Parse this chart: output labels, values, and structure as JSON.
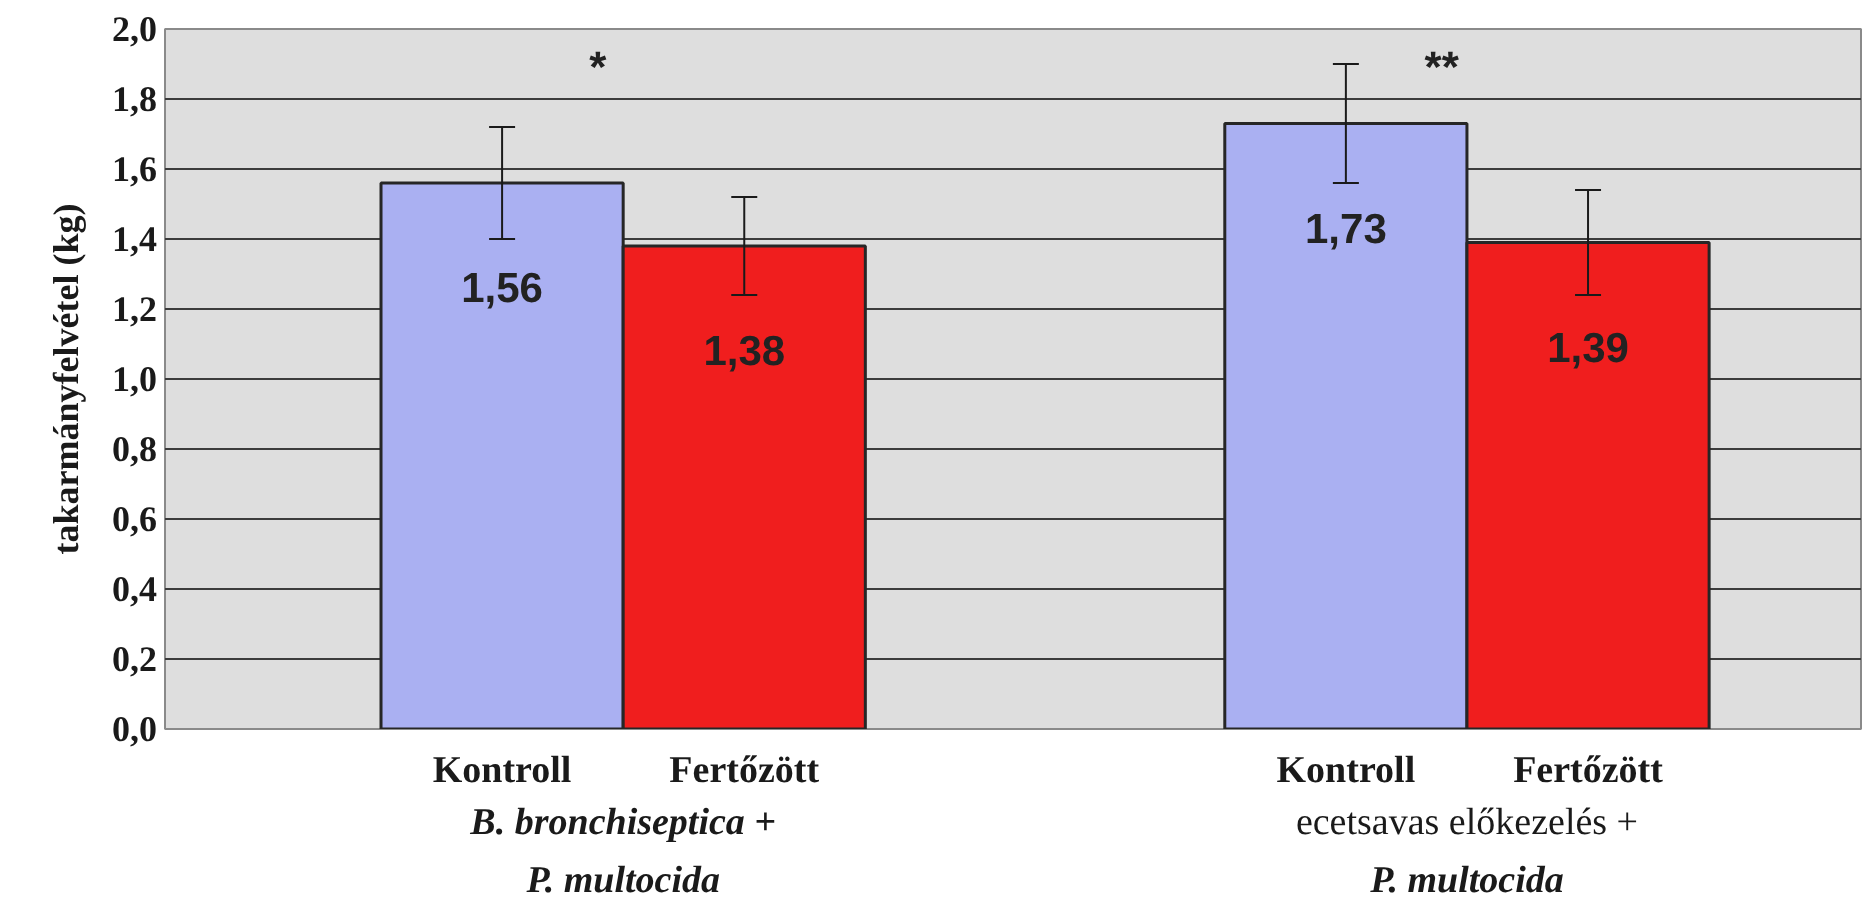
{
  "chart_data": {
    "type": "bar",
    "categories": [
      "B. bronchiseptica +\nP. multocida",
      "ecetsavas előkezelés +\nP. multocida"
    ],
    "series": [
      {
        "name": "Kontroll",
        "color": "#aab0f2",
        "values": [
          1.56,
          1.73
        ],
        "errors": [
          0.16,
          0.17
        ],
        "value_labels": [
          "1,56",
          "1,73"
        ]
      },
      {
        "name": "Fertőzött",
        "color": "#f01e1e",
        "values": [
          1.38,
          1.39
        ],
        "errors": [
          0.14,
          0.15
        ],
        "value_labels": [
          "1,38",
          "1,39"
        ]
      }
    ],
    "ylabel": "takarmányfelvétel (kg)",
    "ylim": [
      0,
      2
    ],
    "yticks": [
      {
        "value": 0,
        "label": "0,0"
      },
      {
        "value": 0.2,
        "label": "0,2"
      },
      {
        "value": 0.4,
        "label": "0,4"
      },
      {
        "value": 0.6,
        "label": "0,6"
      },
      {
        "value": 0.8,
        "label": "0,8"
      },
      {
        "value": 1.0,
        "label": "1,0"
      },
      {
        "value": 1.2,
        "label": "1,2"
      },
      {
        "value": 1.4,
        "label": "1,4"
      },
      {
        "value": 1.6,
        "label": "1,6"
      },
      {
        "value": 1.8,
        "label": "1,8"
      },
      {
        "value": 2.0,
        "label": "2,0"
      }
    ],
    "grid": "y",
    "legend": false,
    "annotations": [
      "*",
      "**"
    ]
  }
}
